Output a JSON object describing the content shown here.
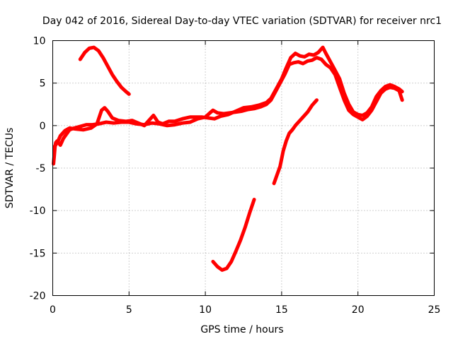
{
  "chart_data": {
    "type": "line",
    "title": "Day 042 of 2016, Sidereal Day-to-day VTEC variation (SDTVAR) for receiver nrc1",
    "xlabel": "GPS time / hours",
    "ylabel": "SDTVAR / TECUs",
    "xlim": [
      0,
      25
    ],
    "ylim": [
      -20,
      10
    ],
    "xticks": [
      0,
      5,
      10,
      15,
      20,
      25
    ],
    "yticks": [
      -20,
      -15,
      -10,
      -5,
      0,
      5,
      10
    ],
    "grid": true,
    "legend": "none",
    "series_color": "#ff0000",
    "series": [
      {
        "points": [
          [
            0.05,
            -4.5
          ],
          [
            0.1,
            -3.5
          ],
          [
            0.15,
            -2.5
          ],
          [
            0.2,
            -2.0
          ],
          [
            0.3,
            -1.8
          ],
          [
            0.5,
            -2.3
          ],
          [
            0.7,
            -1.5
          ],
          [
            0.9,
            -1.0
          ],
          [
            1.1,
            -0.5
          ],
          [
            1.4,
            -0.3
          ],
          [
            1.8,
            -0.1
          ],
          [
            2.2,
            0.1
          ],
          [
            2.6,
            0.1
          ],
          [
            3.0,
            0.2
          ],
          [
            3.5,
            0.4
          ],
          [
            4.0,
            0.3
          ],
          [
            4.5,
            0.4
          ],
          [
            5.0,
            0.4
          ],
          [
            5.5,
            0.2
          ],
          [
            6.0,
            0.1
          ],
          [
            6.5,
            0.3
          ],
          [
            7.0,
            0.2
          ],
          [
            7.5,
            0.0
          ],
          [
            8.0,
            0.1
          ],
          [
            8.5,
            0.3
          ],
          [
            9.0,
            0.4
          ],
          [
            9.5,
            0.8
          ],
          [
            10.0,
            1.0
          ],
          [
            10.3,
            1.5
          ],
          [
            10.5,
            1.8
          ],
          [
            10.8,
            1.5
          ],
          [
            11.2,
            1.4
          ],
          [
            11.6,
            1.5
          ],
          [
            12.0,
            1.6
          ],
          [
            12.4,
            1.7
          ],
          [
            12.8,
            1.9
          ],
          [
            13.2,
            2.0
          ],
          [
            13.6,
            2.2
          ],
          [
            14.0,
            2.5
          ],
          [
            14.3,
            3.0
          ],
          [
            14.6,
            4.0
          ],
          [
            14.9,
            5.0
          ],
          [
            15.2,
            6.0
          ],
          [
            15.5,
            7.2
          ],
          [
            15.8,
            7.4
          ],
          [
            16.1,
            7.5
          ],
          [
            16.4,
            7.3
          ],
          [
            16.7,
            7.6
          ],
          [
            17.0,
            7.7
          ],
          [
            17.3,
            8.0
          ],
          [
            17.6,
            7.8
          ],
          [
            17.9,
            7.2
          ],
          [
            18.2,
            6.8
          ],
          [
            18.5,
            6.0
          ],
          [
            18.8,
            4.5
          ],
          [
            19.1,
            3.0
          ],
          [
            19.4,
            1.8
          ],
          [
            19.7,
            1.3
          ],
          [
            20.0,
            1.0
          ],
          [
            20.3,
            0.7
          ],
          [
            20.6,
            1.1
          ],
          [
            20.9,
            1.8
          ],
          [
            21.2,
            2.8
          ],
          [
            21.5,
            3.8
          ],
          [
            21.8,
            4.3
          ],
          [
            22.1,
            4.5
          ],
          [
            22.4,
            4.4
          ],
          [
            22.7,
            4.1
          ],
          [
            22.9,
            3.0
          ]
        ]
      },
      {
        "points": [
          [
            0.1,
            -2.5
          ],
          [
            0.3,
            -2.0
          ],
          [
            0.5,
            -1.2
          ],
          [
            0.8,
            -0.6
          ],
          [
            1.1,
            -0.3
          ],
          [
            1.5,
            -0.4
          ],
          [
            2.0,
            -0.5
          ],
          [
            2.5,
            -0.3
          ],
          [
            2.9,
            0.2
          ],
          [
            3.2,
            1.8
          ],
          [
            3.4,
            2.1
          ],
          [
            3.6,
            1.7
          ],
          [
            3.9,
            0.9
          ],
          [
            4.3,
            0.6
          ],
          [
            4.8,
            0.5
          ],
          [
            5.2,
            0.6
          ],
          [
            5.6,
            0.3
          ],
          [
            6.0,
            0.0
          ],
          [
            6.3,
            0.6
          ],
          [
            6.6,
            1.2
          ],
          [
            6.9,
            0.4
          ],
          [
            7.2,
            0.2
          ],
          [
            7.6,
            0.5
          ],
          [
            8.0,
            0.5
          ],
          [
            8.5,
            0.8
          ],
          [
            9.0,
            1.0
          ],
          [
            9.4,
            1.0
          ],
          [
            9.8,
            1.0
          ],
          [
            10.2,
            0.9
          ],
          [
            10.6,
            0.8
          ],
          [
            11.0,
            1.1
          ],
          [
            11.5,
            1.3
          ],
          [
            12.0,
            1.7
          ],
          [
            12.5,
            2.1
          ],
          [
            13.0,
            2.2
          ],
          [
            13.5,
            2.4
          ],
          [
            14.0,
            2.7
          ],
          [
            14.3,
            3.2
          ],
          [
            14.7,
            4.5
          ],
          [
            15.0,
            5.5
          ],
          [
            15.3,
            6.8
          ],
          [
            15.6,
            8.0
          ],
          [
            15.9,
            8.5
          ],
          [
            16.2,
            8.2
          ],
          [
            16.5,
            8.1
          ],
          [
            16.8,
            8.4
          ],
          [
            17.1,
            8.3
          ],
          [
            17.4,
            8.6
          ],
          [
            17.7,
            9.2
          ],
          [
            17.9,
            8.5
          ],
          [
            18.2,
            7.5
          ],
          [
            18.5,
            6.5
          ],
          [
            18.8,
            5.5
          ],
          [
            19.1,
            3.8
          ],
          [
            19.4,
            2.5
          ],
          [
            19.7,
            1.6
          ],
          [
            20.0,
            1.3
          ],
          [
            20.3,
            1.2
          ],
          [
            20.6,
            1.5
          ],
          [
            20.9,
            2.2
          ],
          [
            21.2,
            3.4
          ],
          [
            21.5,
            4.1
          ],
          [
            21.8,
            4.6
          ],
          [
            22.1,
            4.8
          ],
          [
            22.4,
            4.6
          ],
          [
            22.7,
            4.3
          ],
          [
            22.9,
            4.0
          ]
        ]
      },
      {
        "points": [
          [
            1.8,
            7.8
          ],
          [
            2.1,
            8.6
          ],
          [
            2.4,
            9.1
          ],
          [
            2.7,
            9.2
          ],
          [
            3.0,
            8.8
          ],
          [
            3.3,
            8.0
          ],
          [
            3.6,
            7.0
          ],
          [
            3.9,
            6.0
          ],
          [
            4.2,
            5.2
          ],
          [
            4.5,
            4.5
          ],
          [
            4.8,
            4.0
          ],
          [
            5.0,
            3.7
          ]
        ]
      },
      {
        "points": [
          [
            10.5,
            -16.0
          ],
          [
            10.8,
            -16.6
          ],
          [
            11.1,
            -17.0
          ],
          [
            11.4,
            -16.8
          ],
          [
            11.7,
            -16.0
          ],
          [
            12.0,
            -14.8
          ],
          [
            12.3,
            -13.5
          ],
          [
            12.6,
            -12.0
          ],
          [
            12.9,
            -10.3
          ],
          [
            13.2,
            -8.7
          ]
        ]
      },
      {
        "points": [
          [
            14.5,
            -6.8
          ],
          [
            14.7,
            -5.8
          ],
          [
            14.9,
            -4.8
          ],
          [
            15.1,
            -3.0
          ],
          [
            15.3,
            -1.8
          ],
          [
            15.5,
            -0.9
          ],
          [
            15.7,
            -0.5
          ],
          [
            15.9,
            0.0
          ],
          [
            16.1,
            0.4
          ],
          [
            16.4,
            1.0
          ],
          [
            16.7,
            1.6
          ],
          [
            17.0,
            2.4
          ],
          [
            17.3,
            3.0
          ]
        ]
      }
    ]
  }
}
